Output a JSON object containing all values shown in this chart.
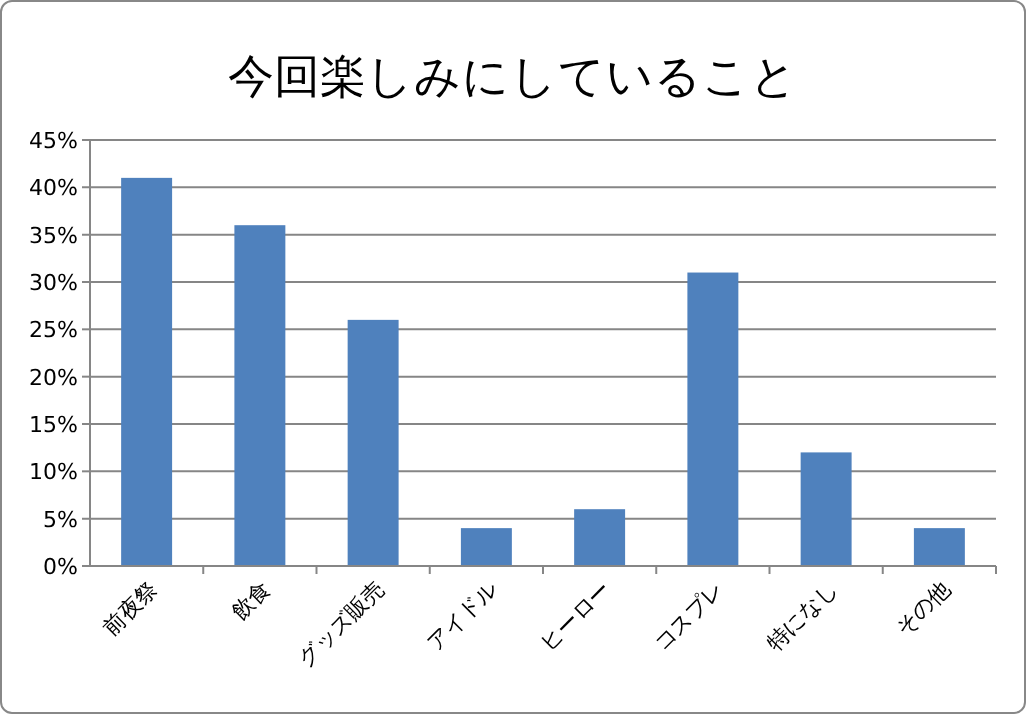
{
  "chart_data": {
    "type": "bar",
    "title": "今回楽しみにしていること",
    "categories": [
      "前夜祭",
      "飲食",
      "グッズ販売",
      "アイドル",
      "ヒーロー",
      "コスプレ",
      "特になし",
      "その他"
    ],
    "values": [
      41,
      36,
      26,
      4,
      6,
      31,
      12,
      4
    ],
    "color": "#4f81bd",
    "ylim": [
      0,
      45
    ],
    "yticks": [
      {
        "value": 0,
        "label": "0%"
      },
      {
        "value": 5,
        "label": "5%"
      },
      {
        "value": 10,
        "label": "10%"
      },
      {
        "value": 15,
        "label": "15%"
      },
      {
        "value": 20,
        "label": "20%"
      },
      {
        "value": 25,
        "label": "25%"
      },
      {
        "value": 30,
        "label": "30%"
      },
      {
        "value": 35,
        "label": "35%"
      },
      {
        "value": 40,
        "label": "40%"
      },
      {
        "value": 45,
        "label": "45%"
      }
    ],
    "grid": "y"
  }
}
